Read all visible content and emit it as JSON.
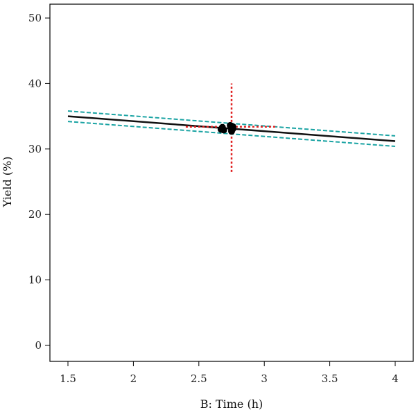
{
  "chart_data": {
    "type": "line",
    "xlabel": "B: Time (h)",
    "ylabel": "Yield (%)",
    "xlim": [
      1.5,
      4
    ],
    "ylim": [
      0,
      50
    ],
    "x_ticks": [
      "1.5",
      "2",
      "2.5",
      "3",
      "3.5",
      "4"
    ],
    "y_ticks": [
      "0",
      "10",
      "20",
      "30",
      "40",
      "50"
    ],
    "grid": false,
    "series": [
      {
        "role": "fit",
        "x": [
          1.5,
          4
        ],
        "y": [
          35.0,
          31.2
        ],
        "color": "#111111"
      },
      {
        "role": "upper-ci",
        "x": [
          1.5,
          4
        ],
        "y": [
          35.8,
          32.0
        ],
        "color": "#1aa3a3"
      },
      {
        "role": "lower-ci",
        "x": [
          1.5,
          4
        ],
        "y": [
          34.2,
          30.4
        ],
        "color": "#1aa3a3"
      },
      {
        "role": "current-value-marker",
        "x": [
          2.75,
          2.75
        ],
        "y": [
          26.5,
          40.0
        ],
        "color": "#e02020"
      },
      {
        "role": "current-value-marker",
        "x": [
          2.4,
          3.1
        ],
        "y": [
          33.4,
          33.4
        ],
        "color": "#e02020"
      }
    ],
    "points": {
      "x": [
        2.67,
        2.68,
        2.69,
        2.74,
        2.75,
        2.75,
        2.76,
        2.76
      ],
      "y": [
        33.0,
        33.3,
        32.9,
        33.6,
        33.0,
        32.7,
        33.4,
        33.1
      ],
      "color": "#000000"
    }
  }
}
